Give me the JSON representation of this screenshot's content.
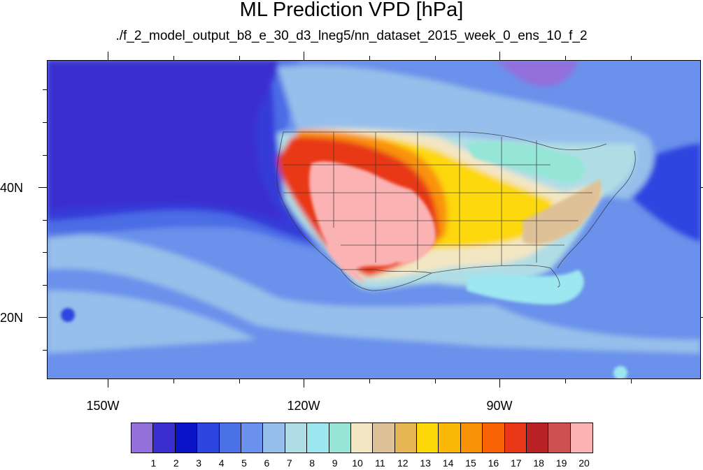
{
  "title": "ML Prediction VPD [hPa]",
  "subtitle": "./f_2_model_output_b8_e_30_d3_lneg5/nn_dataset_2015_week_0_ens_10_f_2",
  "lon_labels": [
    "150W",
    "120W",
    "90W"
  ],
  "lat_labels": [
    "40N",
    "20N"
  ],
  "colorbar": {
    "labels": [
      "1",
      "2",
      "3",
      "4",
      "5",
      "6",
      "7",
      "8",
      "9",
      "10",
      "11",
      "12",
      "13",
      "14",
      "15",
      "16",
      "17",
      "18",
      "19",
      "20"
    ],
    "colors": [
      "#9370DB",
      "#3B2ECF",
      "#0A13C7",
      "#2D45DF",
      "#4A72E6",
      "#6A91EB",
      "#96BFEB",
      "#B0DDE5",
      "#9DE7F0",
      "#95E6D7",
      "#F3E6C3",
      "#DEC196",
      "#E6B654",
      "#FCD808",
      "#FCB808",
      "#FA9208",
      "#FA6305",
      "#E83818",
      "#BA2227",
      "#D05151",
      "#FBB2B2"
    ]
  },
  "map": {
    "background_color": "#6A91EB",
    "ocean_deep_color": "#3B2ECF",
    "land_hot_color": "#FBB2B2"
  }
}
